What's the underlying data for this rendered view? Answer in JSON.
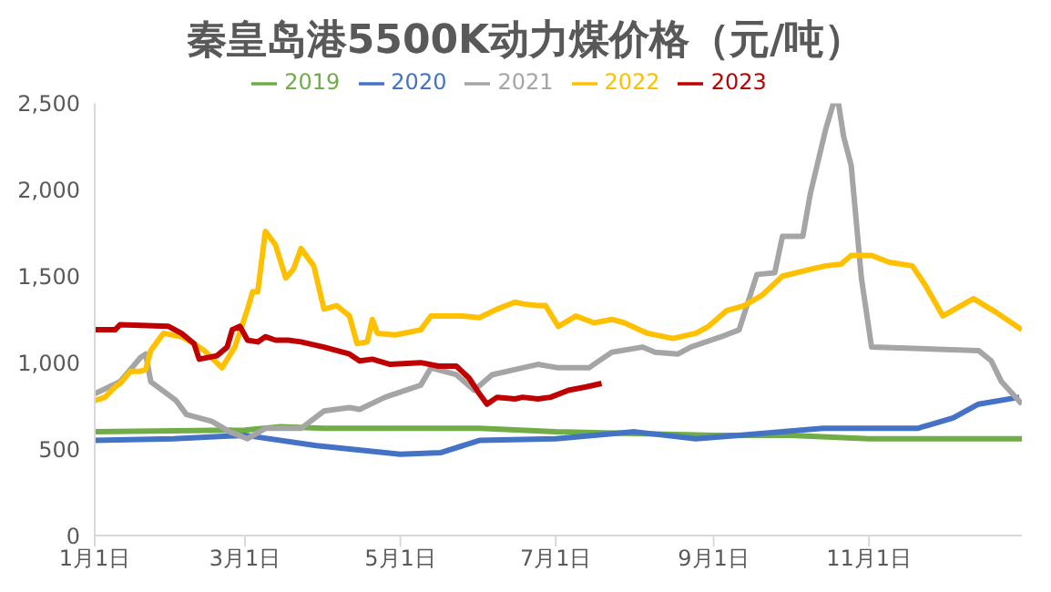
{
  "chart_data": {
    "type": "line",
    "title": "秦皇岛港5500K动力煤价格（元/吨）",
    "legend": "top",
    "grid": false,
    "marker": "none",
    "line_style": "solid",
    "xlim": [
      "--01-01",
      "--12-31"
    ],
    "xticks": [
      {
        "value": "--01-01",
        "label": "1月1日"
      },
      {
        "value": "--03-01",
        "label": "3月1日"
      },
      {
        "value": "--05-01",
        "label": "5月1日"
      },
      {
        "value": "--07-01",
        "label": "7月1日"
      },
      {
        "value": "--09-01",
        "label": "9月1日"
      },
      {
        "value": "--11-01",
        "label": "11月1日"
      }
    ],
    "ylim": [
      0,
      2500
    ],
    "yticks": [
      0,
      500,
      {
        "value": 1000,
        "label": "1,000"
      },
      {
        "value": 1500,
        "label": "1,500"
      },
      {
        "value": 2000,
        "label": "2,000"
      },
      {
        "value": 2500,
        "label": "2,500"
      }
    ],
    "series": [
      {
        "name": "2019",
        "color": "#70ad47",
        "x": [
          "--01-01",
          "--03-01",
          "--03-15",
          "--04-01",
          "--05-01",
          "--06-01",
          "--07-01",
          "--08-01",
          "--09-01",
          "--10-01",
          "--11-01",
          "--12-01",
          "--12-31"
        ],
        "values": [
          600,
          610,
          630,
          620,
          620,
          620,
          600,
          590,
          580,
          580,
          560,
          560,
          560
        ]
      },
      {
        "name": "2020",
        "color": "#4472c4",
        "x": [
          "--01-01",
          "--02-01",
          "--03-01",
          "--03-29",
          "--05-01",
          "--05-17",
          "--06-01",
          "--07-01",
          "--08-01",
          "--08-25",
          "--09-11",
          "--10-14",
          "--11-20",
          "--12-04",
          "--12-14",
          "--12-30"
        ],
        "values": [
          550,
          560,
          580,
          520,
          470,
          480,
          550,
          560,
          600,
          560,
          580,
          620,
          620,
          680,
          760,
          800
        ]
      },
      {
        "name": "2021",
        "color": "#a5a5a5",
        "x": [
          "--01-01",
          "--01-11",
          "--01-19",
          "--01-21",
          "--01-23",
          "--02-02",
          "--02-06",
          "--02-16",
          "--02-23",
          "--03-02",
          "--03-09",
          "--03-23",
          "--04-01",
          "--04-11",
          "--04-15",
          "--04-25",
          "--05-09",
          "--05-13",
          "--05-23",
          "--05-30",
          "--06-06",
          "--06-18",
          "--06-24",
          "--07-02",
          "--07-14",
          "--07-23",
          "--08-04",
          "--08-09",
          "--08-18",
          "--08-23",
          "--09-04",
          "--09-11",
          "--09-18",
          "--09-25",
          "--09-28",
          "--10-06",
          "--10-09",
          "--10-15",
          "--10-18",
          "--10-20",
          "--10-22",
          "--10-25",
          "--10-29",
          "--11-02",
          "--12-14",
          "--12-19",
          "--12-23",
          "--12-31"
        ],
        "values": [
          820,
          890,
          1030,
          1050,
          890,
          780,
          700,
          660,
          600,
          560,
          620,
          620,
          720,
          740,
          730,
          800,
          870,
          970,
          930,
          840,
          930,
          970,
          990,
          970,
          970,
          1060,
          1090,
          1060,
          1050,
          1090,
          1150,
          1190,
          1510,
          1520,
          1730,
          1730,
          1980,
          2350,
          2500,
          2500,
          2310,
          2140,
          1490,
          1090,
          1070,
          1010,
          890,
          760
        ]
      },
      {
        "name": "2022",
        "color": "#ffc000",
        "x": [
          "--01-01",
          "--01-05",
          "--01-09",
          "--01-11",
          "--01-15",
          "--01-19",
          "--01-21",
          "--01-23",
          "--01-28",
          "--02-04",
          "--02-09",
          "--02-13",
          "--02-20",
          "--02-25",
          "--03-02",
          "--03-04",
          "--03-06",
          "--03-09",
          "--03-13",
          "--03-17",
          "--03-20",
          "--03-23",
          "--03-28",
          "--04-01",
          "--04-06",
          "--04-11",
          "--04-14",
          "--04-18",
          "--04-20",
          "--04-22",
          "--04-29",
          "--05-09",
          "--05-13",
          "--05-25",
          "--06-01",
          "--06-08",
          "--06-15",
          "--06-18",
          "--06-24",
          "--06-27",
          "--07-02",
          "--07-09",
          "--07-16",
          "--07-23",
          "--07-28",
          "--08-06",
          "--08-16",
          "--08-25",
          "--08-30",
          "--09-06",
          "--09-13",
          "--09-20",
          "--09-28",
          "--10-09",
          "--10-15",
          "--10-21",
          "--10-25",
          "--11-02",
          "--11-09",
          "--11-18",
          "--11-23",
          "--11-30",
          "--12-12",
          "--12-21",
          "--12-31"
        ],
        "values": [
          780,
          800,
          860,
          880,
          950,
          950,
          960,
          1070,
          1170,
          1150,
          1110,
          1070,
          970,
          1090,
          1310,
          1410,
          1410,
          1760,
          1680,
          1490,
          1540,
          1660,
          1560,
          1310,
          1330,
          1270,
          1110,
          1120,
          1250,
          1170,
          1160,
          1190,
          1270,
          1270,
          1260,
          1310,
          1350,
          1340,
          1330,
          1330,
          1210,
          1270,
          1230,
          1250,
          1230,
          1170,
          1140,
          1170,
          1210,
          1300,
          1330,
          1390,
          1500,
          1540,
          1560,
          1570,
          1620,
          1620,
          1580,
          1560,
          1450,
          1270,
          1370,
          1290,
          1190
        ]
      },
      {
        "name": "2023",
        "color": "#c00000",
        "x": [
          "--01-01",
          "--01-09",
          "--01-11",
          "--01-30",
          "--02-04",
          "--02-09",
          "--02-11",
          "--02-18",
          "--02-22",
          "--02-24",
          "--02-27",
          "--03-02",
          "--03-06",
          "--03-09",
          "--03-13",
          "--03-18",
          "--03-23",
          "--04-01",
          "--04-11",
          "--04-15",
          "--04-20",
          "--04-27",
          "--05-09",
          "--05-16",
          "--05-23",
          "--05-28",
          "--06-01",
          "--06-04",
          "--06-08",
          "--06-15",
          "--06-18",
          "--06-24",
          "--06-29",
          "--07-06",
          "--07-13",
          "--07-19"
        ],
        "values": [
          1190,
          1190,
          1220,
          1210,
          1170,
          1110,
          1020,
          1040,
          1090,
          1190,
          1210,
          1130,
          1120,
          1150,
          1130,
          1130,
          1120,
          1090,
          1050,
          1010,
          1020,
          990,
          1000,
          980,
          980,
          910,
          820,
          760,
          800,
          790,
          800,
          790,
          800,
          840,
          860,
          880
        ]
      }
    ]
  }
}
